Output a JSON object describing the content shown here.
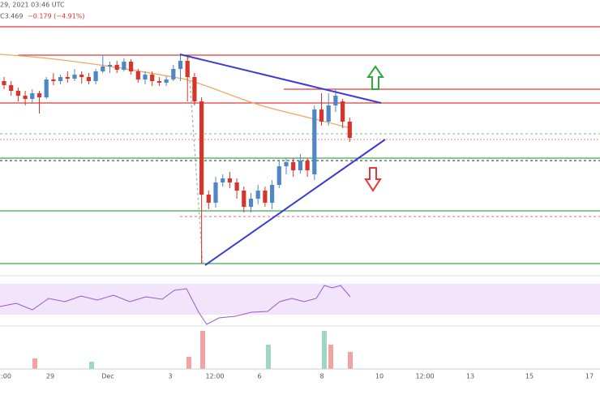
{
  "chart_data": {
    "type": "candlestick",
    "header": "29, 2021 03:46 UTC",
    "close_text": "C3.469",
    "change_text": "−0.179 (−4.91%)",
    "x_labels": [
      "2:00",
      "29",
      "Dec",
      "3",
      "12:00",
      "6",
      "8",
      "10",
      "12:00",
      "13",
      "15",
      "17"
    ],
    "ylim": [
      1.985,
      4.82
    ],
    "up_color": "#4f86c6",
    "down_color": "#d9342b",
    "candles": [
      [
        4.1,
        4.145,
        4.01,
        4.055
      ],
      [
        4.055,
        4.1,
        3.938,
        3.992
      ],
      [
        3.992,
        4.028,
        3.875,
        3.938
      ],
      [
        3.938,
        3.992,
        3.83,
        3.902
      ],
      [
        3.902,
        4.01,
        3.848,
        3.965
      ],
      [
        3.965,
        3.992,
        3.74,
        3.92
      ],
      [
        3.92,
        4.145,
        3.902,
        4.118
      ],
      [
        4.118,
        4.19,
        4.055,
        4.1
      ],
      [
        4.1,
        4.172,
        4.064,
        4.145
      ],
      [
        4.145,
        4.208,
        4.082,
        4.127
      ],
      [
        4.127,
        4.235,
        4.1,
        4.172
      ],
      [
        4.172,
        4.208,
        4.073,
        4.145
      ],
      [
        4.145,
        4.19,
        4.064,
        4.1
      ],
      [
        4.1,
        4.235,
        4.064,
        4.208
      ],
      [
        4.208,
        4.388,
        4.19,
        4.262
      ],
      [
        4.262,
        4.316,
        4.19,
        4.28
      ],
      [
        4.28,
        4.325,
        4.19,
        4.226
      ],
      [
        4.226,
        4.352,
        4.208,
        4.316
      ],
      [
        4.316,
        4.343,
        4.172,
        4.208
      ],
      [
        4.208,
        4.235,
        4.082,
        4.118
      ],
      [
        4.118,
        4.208,
        4.064,
        4.172
      ],
      [
        4.172,
        4.208,
        4.046,
        4.1
      ],
      [
        4.1,
        4.145,
        4.046,
        4.082
      ],
      [
        4.082,
        4.154,
        4.046,
        4.118
      ],
      [
        4.118,
        4.28,
        4.1,
        4.235
      ],
      [
        4.235,
        4.388,
        4.1,
        4.325
      ],
      [
        4.325,
        4.37,
        3.875,
        4.145
      ],
      [
        4.145,
        4.19,
        3.83,
        3.875
      ],
      [
        3.875,
        3.92,
        2.075,
        2.84
      ],
      [
        2.84,
        2.885,
        2.678,
        2.75
      ],
      [
        2.75,
        3.038,
        2.696,
        2.975
      ],
      [
        2.975,
        3.065,
        2.93,
        3.02
      ],
      [
        3.02,
        3.092,
        2.912,
        2.975
      ],
      [
        2.975,
        3.02,
        2.795,
        2.885
      ],
      [
        2.885,
        2.93,
        2.642,
        2.705
      ],
      [
        2.705,
        2.858,
        2.642,
        2.795
      ],
      [
        2.795,
        2.948,
        2.732,
        2.885
      ],
      [
        2.885,
        2.93,
        2.705,
        2.75
      ],
      [
        2.75,
        3.002,
        2.678,
        2.948
      ],
      [
        2.948,
        3.218,
        2.912,
        3.155
      ],
      [
        3.155,
        3.245,
        3.065,
        3.2
      ],
      [
        3.2,
        3.245,
        3.038,
        3.11
      ],
      [
        3.11,
        3.29,
        3.074,
        3.218
      ],
      [
        3.218,
        3.245,
        3.038,
        3.11
      ],
      [
        3.065,
        3.83,
        3.002,
        3.785
      ],
      [
        3.785,
        3.965,
        3.605,
        3.65
      ],
      [
        3.65,
        3.965,
        3.605,
        3.83
      ],
      [
        3.83,
        4.01,
        3.758,
        3.938
      ],
      [
        3.875,
        3.902,
        3.578,
        3.65
      ],
      [
        3.65,
        3.695,
        3.425,
        3.47
      ]
    ]
  }
}
